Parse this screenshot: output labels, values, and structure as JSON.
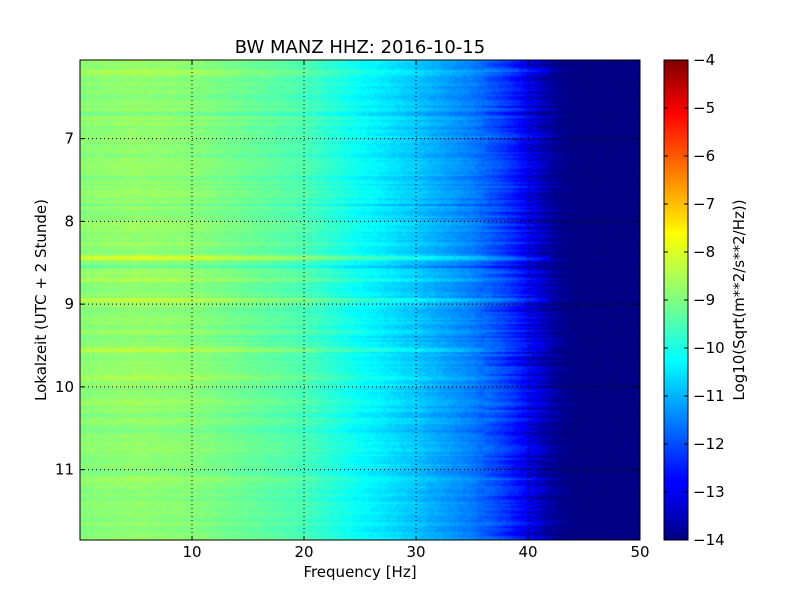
{
  "chart_data": {
    "type": "heatmap",
    "title": "BW MANZ HHZ: 2016-10-15",
    "xlabel": "Frequency [Hz]",
    "ylabel": "Lokalzeit (UTC + 2 Stunde)",
    "xlim": [
      0,
      50
    ],
    "ylim": [
      11.85,
      6.05
    ],
    "xticks": [
      {
        "value": 10,
        "label": "10"
      },
      {
        "value": 20,
        "label": "20"
      },
      {
        "value": 30,
        "label": "30"
      },
      {
        "value": 40,
        "label": "40"
      },
      {
        "value": 50,
        "label": "50"
      }
    ],
    "yticks": [
      {
        "value": 7,
        "label": "7"
      },
      {
        "value": 8,
        "label": "8"
      },
      {
        "value": 9,
        "label": "9"
      },
      {
        "value": 10,
        "label": "10"
      },
      {
        "value": 11,
        "label": "11"
      }
    ],
    "grid": true,
    "colormap": "jet",
    "colorbar": {
      "label": "Log10(Sqrt(m**2/s**2/Hz))",
      "range": [
        -14,
        -4
      ],
      "ticks": [
        {
          "value": -4,
          "label": "−4"
        },
        {
          "value": -5,
          "label": "−5"
        },
        {
          "value": -6,
          "label": "−6"
        },
        {
          "value": -7,
          "label": "−7"
        },
        {
          "value": -8,
          "label": "−8"
        },
        {
          "value": -9,
          "label": "−9"
        },
        {
          "value": -10,
          "label": "−10"
        },
        {
          "value": -11,
          "label": "−11"
        },
        {
          "value": -12,
          "label": "−12"
        },
        {
          "value": -13,
          "label": "−13"
        },
        {
          "value": -14,
          "label": "−14"
        }
      ]
    },
    "spectrum_profile": [
      {
        "freq": 0,
        "value": -8.9
      },
      {
        "freq": 5,
        "value": -8.8
      },
      {
        "freq": 10,
        "value": -8.9
      },
      {
        "freq": 15,
        "value": -9.2
      },
      {
        "freq": 20,
        "value": -9.5
      },
      {
        "freq": 25,
        "value": -10.2
      },
      {
        "freq": 30,
        "value": -10.8
      },
      {
        "freq": 35,
        "value": -11.5
      },
      {
        "freq": 38,
        "value": -12.2
      },
      {
        "freq": 40,
        "value": -12.9
      },
      {
        "freq": 42,
        "value": -13.7
      },
      {
        "freq": 44,
        "value": -14.0
      },
      {
        "freq": 50,
        "value": -14.0
      }
    ],
    "bright_bands": [
      {
        "time": 8.45,
        "delta": 0.6
      },
      {
        "time": 8.7,
        "delta": 0.4
      },
      {
        "time": 8.95,
        "delta": 0.4
      },
      {
        "time": 9.55,
        "delta": 0.5
      },
      {
        "time": 9.9,
        "delta": 0.3
      },
      {
        "time": 6.2,
        "delta": 0.3
      }
    ],
    "dark_bands": [
      {
        "time": 6.7,
        "delta": -0.4
      },
      {
        "time": 7.8,
        "delta": -0.3
      },
      {
        "time": 8.55,
        "delta": -0.5
      },
      {
        "time": 9.4,
        "delta": -0.4
      },
      {
        "time": 10.55,
        "delta": -0.3
      }
    ]
  }
}
